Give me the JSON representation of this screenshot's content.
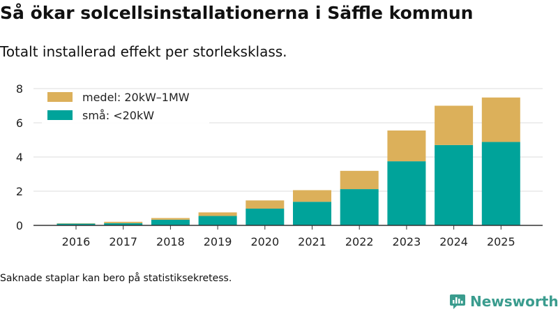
{
  "title": "Så ökar solcellsinstallationerna i Säffle kommun",
  "subtitle": "Totalt installerad effekt per storleksklass.",
  "footnote": "Saknade staplar kan bero på statistiksekretess.",
  "brand": {
    "name": "Newsworthy",
    "icon": "bar-chart-speech-bubble-icon"
  },
  "colors": {
    "small": "#00a39a",
    "medium": "#dcb05a",
    "grid": "#dddddd",
    "axis": "#333333",
    "brand": "#3a9c8e"
  },
  "chart_data": {
    "type": "bar",
    "stacked": true,
    "categories": [
      "2016",
      "2017",
      "2018",
      "2019",
      "2020",
      "2021",
      "2022",
      "2023",
      "2024",
      "2025"
    ],
    "series": [
      {
        "name": "små: <20kW",
        "key": "small",
        "values": [
          0.1,
          0.13,
          0.33,
          0.55,
          0.98,
          1.38,
          2.12,
          3.75,
          4.7,
          4.88
        ]
      },
      {
        "name": "medel: 20kW–1MW",
        "key": "medium",
        "values": [
          0.02,
          0.08,
          0.1,
          0.21,
          0.48,
          0.68,
          1.07,
          1.8,
          2.3,
          2.6
        ]
      }
    ],
    "legend_order": [
      "medium",
      "small"
    ],
    "ylim": [
      0,
      8
    ],
    "yticks": [
      0,
      2,
      4,
      6,
      8
    ],
    "xlabel": "",
    "ylabel": "",
    "grid": true,
    "legend_position": "top-left"
  }
}
